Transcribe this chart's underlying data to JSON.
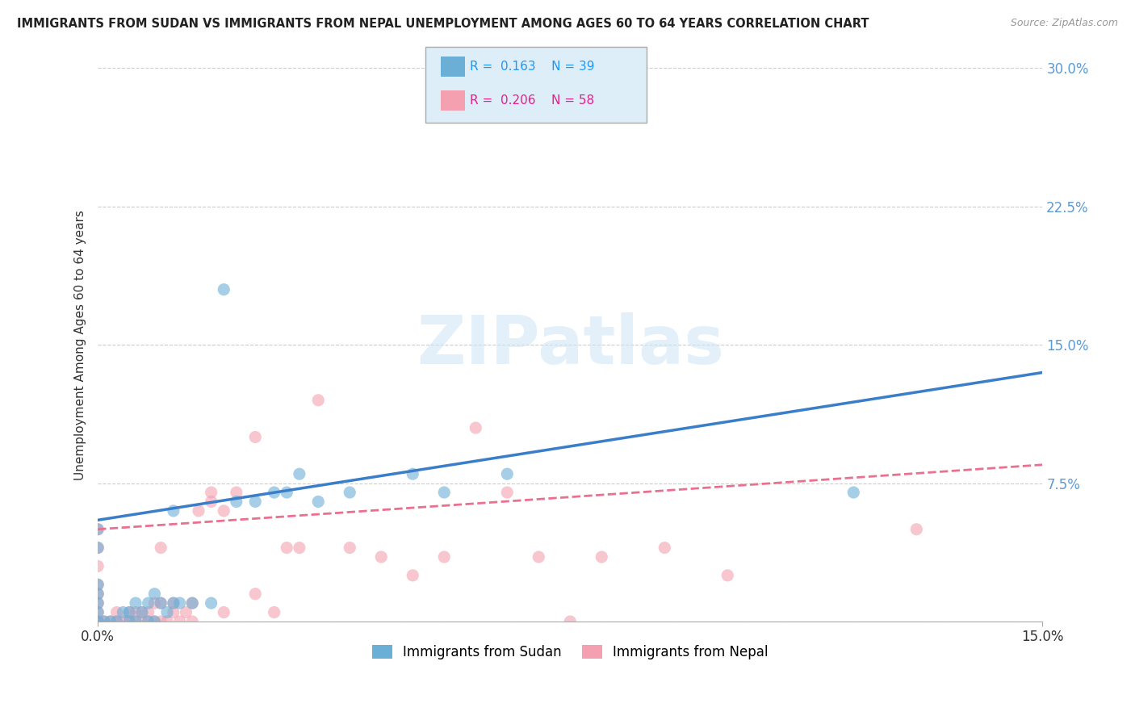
{
  "title": "IMMIGRANTS FROM SUDAN VS IMMIGRANTS FROM NEPAL UNEMPLOYMENT AMONG AGES 60 TO 64 YEARS CORRELATION CHART",
  "source": "Source: ZipAtlas.com",
  "ylabel": "Unemployment Among Ages 60 to 64 years",
  "xlim": [
    0.0,
    0.15
  ],
  "ylim": [
    0.0,
    0.3
  ],
  "xticklabels": [
    "0.0%",
    "15.0%"
  ],
  "yticks_right": [
    0.0,
    0.075,
    0.15,
    0.225,
    0.3
  ],
  "ytick_right_labels": [
    "",
    "7.5%",
    "15.0%",
    "22.5%",
    "30.0%"
  ],
  "sudan_color": "#6baed6",
  "nepal_color": "#f4a0b0",
  "sudan_R": 0.163,
  "sudan_N": 39,
  "nepal_R": 0.206,
  "nepal_N": 58,
  "sudan_line_start_y": 0.055,
  "sudan_line_end_y": 0.135,
  "nepal_line_start_y": 0.05,
  "nepal_line_end_y": 0.085,
  "watermark": "ZIPatlas",
  "background_color": "#ffffff",
  "grid_color": "#cccccc",
  "legend_box_color": "#deeef8",
  "legend_border_color": "#aaaaaa",
  "sudan_scatter_x": [
    0.0,
    0.0,
    0.0,
    0.0,
    0.0,
    0.0,
    0.0,
    0.001,
    0.002,
    0.003,
    0.004,
    0.005,
    0.005,
    0.006,
    0.006,
    0.007,
    0.008,
    0.008,
    0.009,
    0.009,
    0.01,
    0.011,
    0.012,
    0.012,
    0.013,
    0.015,
    0.018,
    0.02,
    0.022,
    0.025,
    0.028,
    0.03,
    0.032,
    0.035,
    0.04,
    0.05,
    0.055,
    0.065,
    0.12
  ],
  "sudan_scatter_y": [
    0.0,
    0.005,
    0.01,
    0.015,
    0.02,
    0.04,
    0.05,
    0.0,
    0.0,
    0.0,
    0.005,
    0.0,
    0.005,
    0.0,
    0.01,
    0.005,
    0.0,
    0.01,
    0.0,
    0.015,
    0.01,
    0.005,
    0.01,
    0.06,
    0.01,
    0.01,
    0.01,
    0.18,
    0.065,
    0.065,
    0.07,
    0.07,
    0.08,
    0.065,
    0.07,
    0.08,
    0.07,
    0.08,
    0.07
  ],
  "nepal_scatter_x": [
    0.0,
    0.0,
    0.0,
    0.0,
    0.0,
    0.0,
    0.0,
    0.0,
    0.0,
    0.001,
    0.002,
    0.003,
    0.003,
    0.004,
    0.005,
    0.005,
    0.006,
    0.006,
    0.007,
    0.007,
    0.008,
    0.008,
    0.009,
    0.009,
    0.01,
    0.01,
    0.01,
    0.011,
    0.012,
    0.012,
    0.013,
    0.014,
    0.015,
    0.015,
    0.016,
    0.018,
    0.018,
    0.02,
    0.02,
    0.022,
    0.025,
    0.025,
    0.028,
    0.03,
    0.032,
    0.035,
    0.04,
    0.045,
    0.05,
    0.055,
    0.06,
    0.065,
    0.07,
    0.075,
    0.08,
    0.09,
    0.1,
    0.13
  ],
  "nepal_scatter_y": [
    0.0,
    0.0,
    0.005,
    0.01,
    0.015,
    0.02,
    0.03,
    0.04,
    0.05,
    0.0,
    0.0,
    0.0,
    0.005,
    0.0,
    0.0,
    0.005,
    0.0,
    0.005,
    0.0,
    0.005,
    0.0,
    0.005,
    0.0,
    0.01,
    0.0,
    0.01,
    0.04,
    0.0,
    0.005,
    0.01,
    0.0,
    0.005,
    0.0,
    0.01,
    0.06,
    0.065,
    0.07,
    0.005,
    0.06,
    0.07,
    0.015,
    0.1,
    0.005,
    0.04,
    0.04,
    0.12,
    0.04,
    0.035,
    0.025,
    0.035,
    0.105,
    0.07,
    0.035,
    0.0,
    0.035,
    0.04,
    0.025,
    0.05
  ]
}
